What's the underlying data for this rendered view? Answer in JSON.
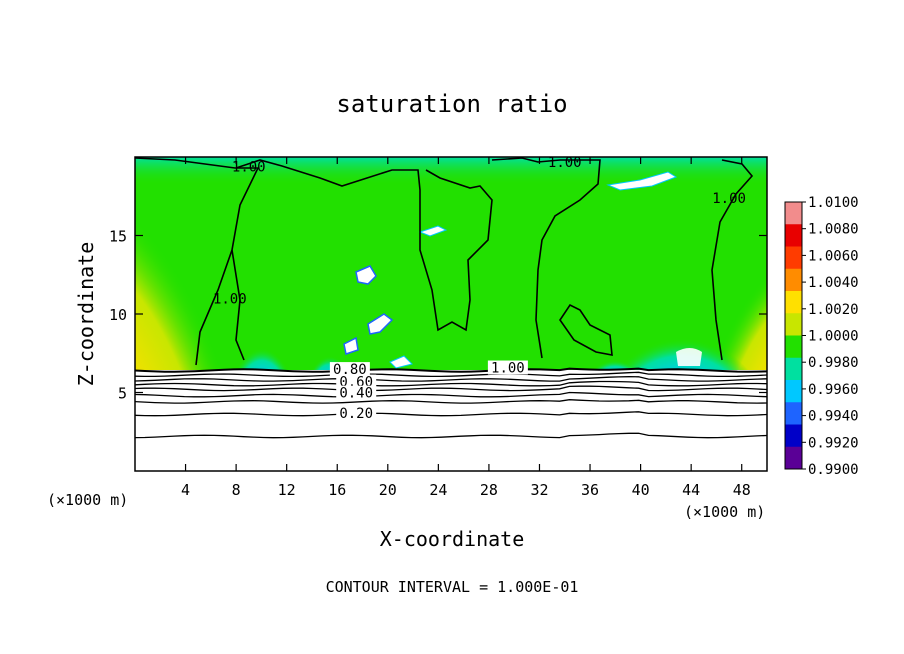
{
  "chart_data": {
    "type": "heatmap",
    "title": "saturation ratio",
    "xlabel": "X-coordinate",
    "ylabel": "Z-coordinate",
    "x_unit_left": "(×1000 m)",
    "x_unit_right": "(×1000 m)",
    "footer": "CONTOUR INTERVAL = 1.000E-01",
    "xlim": [
      0,
      50
    ],
    "ylim": [
      0,
      20
    ],
    "x_ticks": [
      4,
      8,
      12,
      16,
      20,
      24,
      28,
      32,
      36,
      40,
      44,
      48
    ],
    "y_ticks": [
      5,
      10,
      15
    ],
    "colorbar": {
      "levels": [
        "1.0100",
        "1.0080",
        "1.0060",
        "1.0040",
        "1.0020",
        "1.0000",
        "0.9980",
        "0.9960",
        "0.9940",
        "0.9920",
        "0.9900"
      ],
      "colors": [
        "#f28c8c",
        "#e80000",
        "#ff3c00",
        "#ff8c00",
        "#ffe000",
        "#c8e600",
        "#22e000",
        "#00e0a0",
        "#00c8ff",
        "#1e64ff",
        "#0000c8",
        "#5a0096"
      ]
    },
    "contour_labels": [
      {
        "text": "1.00",
        "x": 9.0,
        "z": 19.2
      },
      {
        "text": "1.00",
        "x": 34.0,
        "z": 19.5
      },
      {
        "text": "1.00",
        "x": 47.0,
        "z": 17.2
      },
      {
        "text": "1.00",
        "x": 7.5,
        "z": 10.8
      },
      {
        "text": "1.00",
        "x": 29.5,
        "z": 6.4
      },
      {
        "text": "0.80",
        "x": 17.0,
        "z": 6.3
      },
      {
        "text": "0.60",
        "x": 17.5,
        "z": 5.5
      },
      {
        "text": "0.40",
        "x": 17.5,
        "z": 4.8
      },
      {
        "text": "0.20",
        "x": 17.5,
        "z": 3.5
      }
    ],
    "lower_contours_z": [
      6.4,
      6.1,
      5.8,
      5.5,
      5.2,
      4.8,
      4.4,
      3.6,
      2.2
    ]
  }
}
